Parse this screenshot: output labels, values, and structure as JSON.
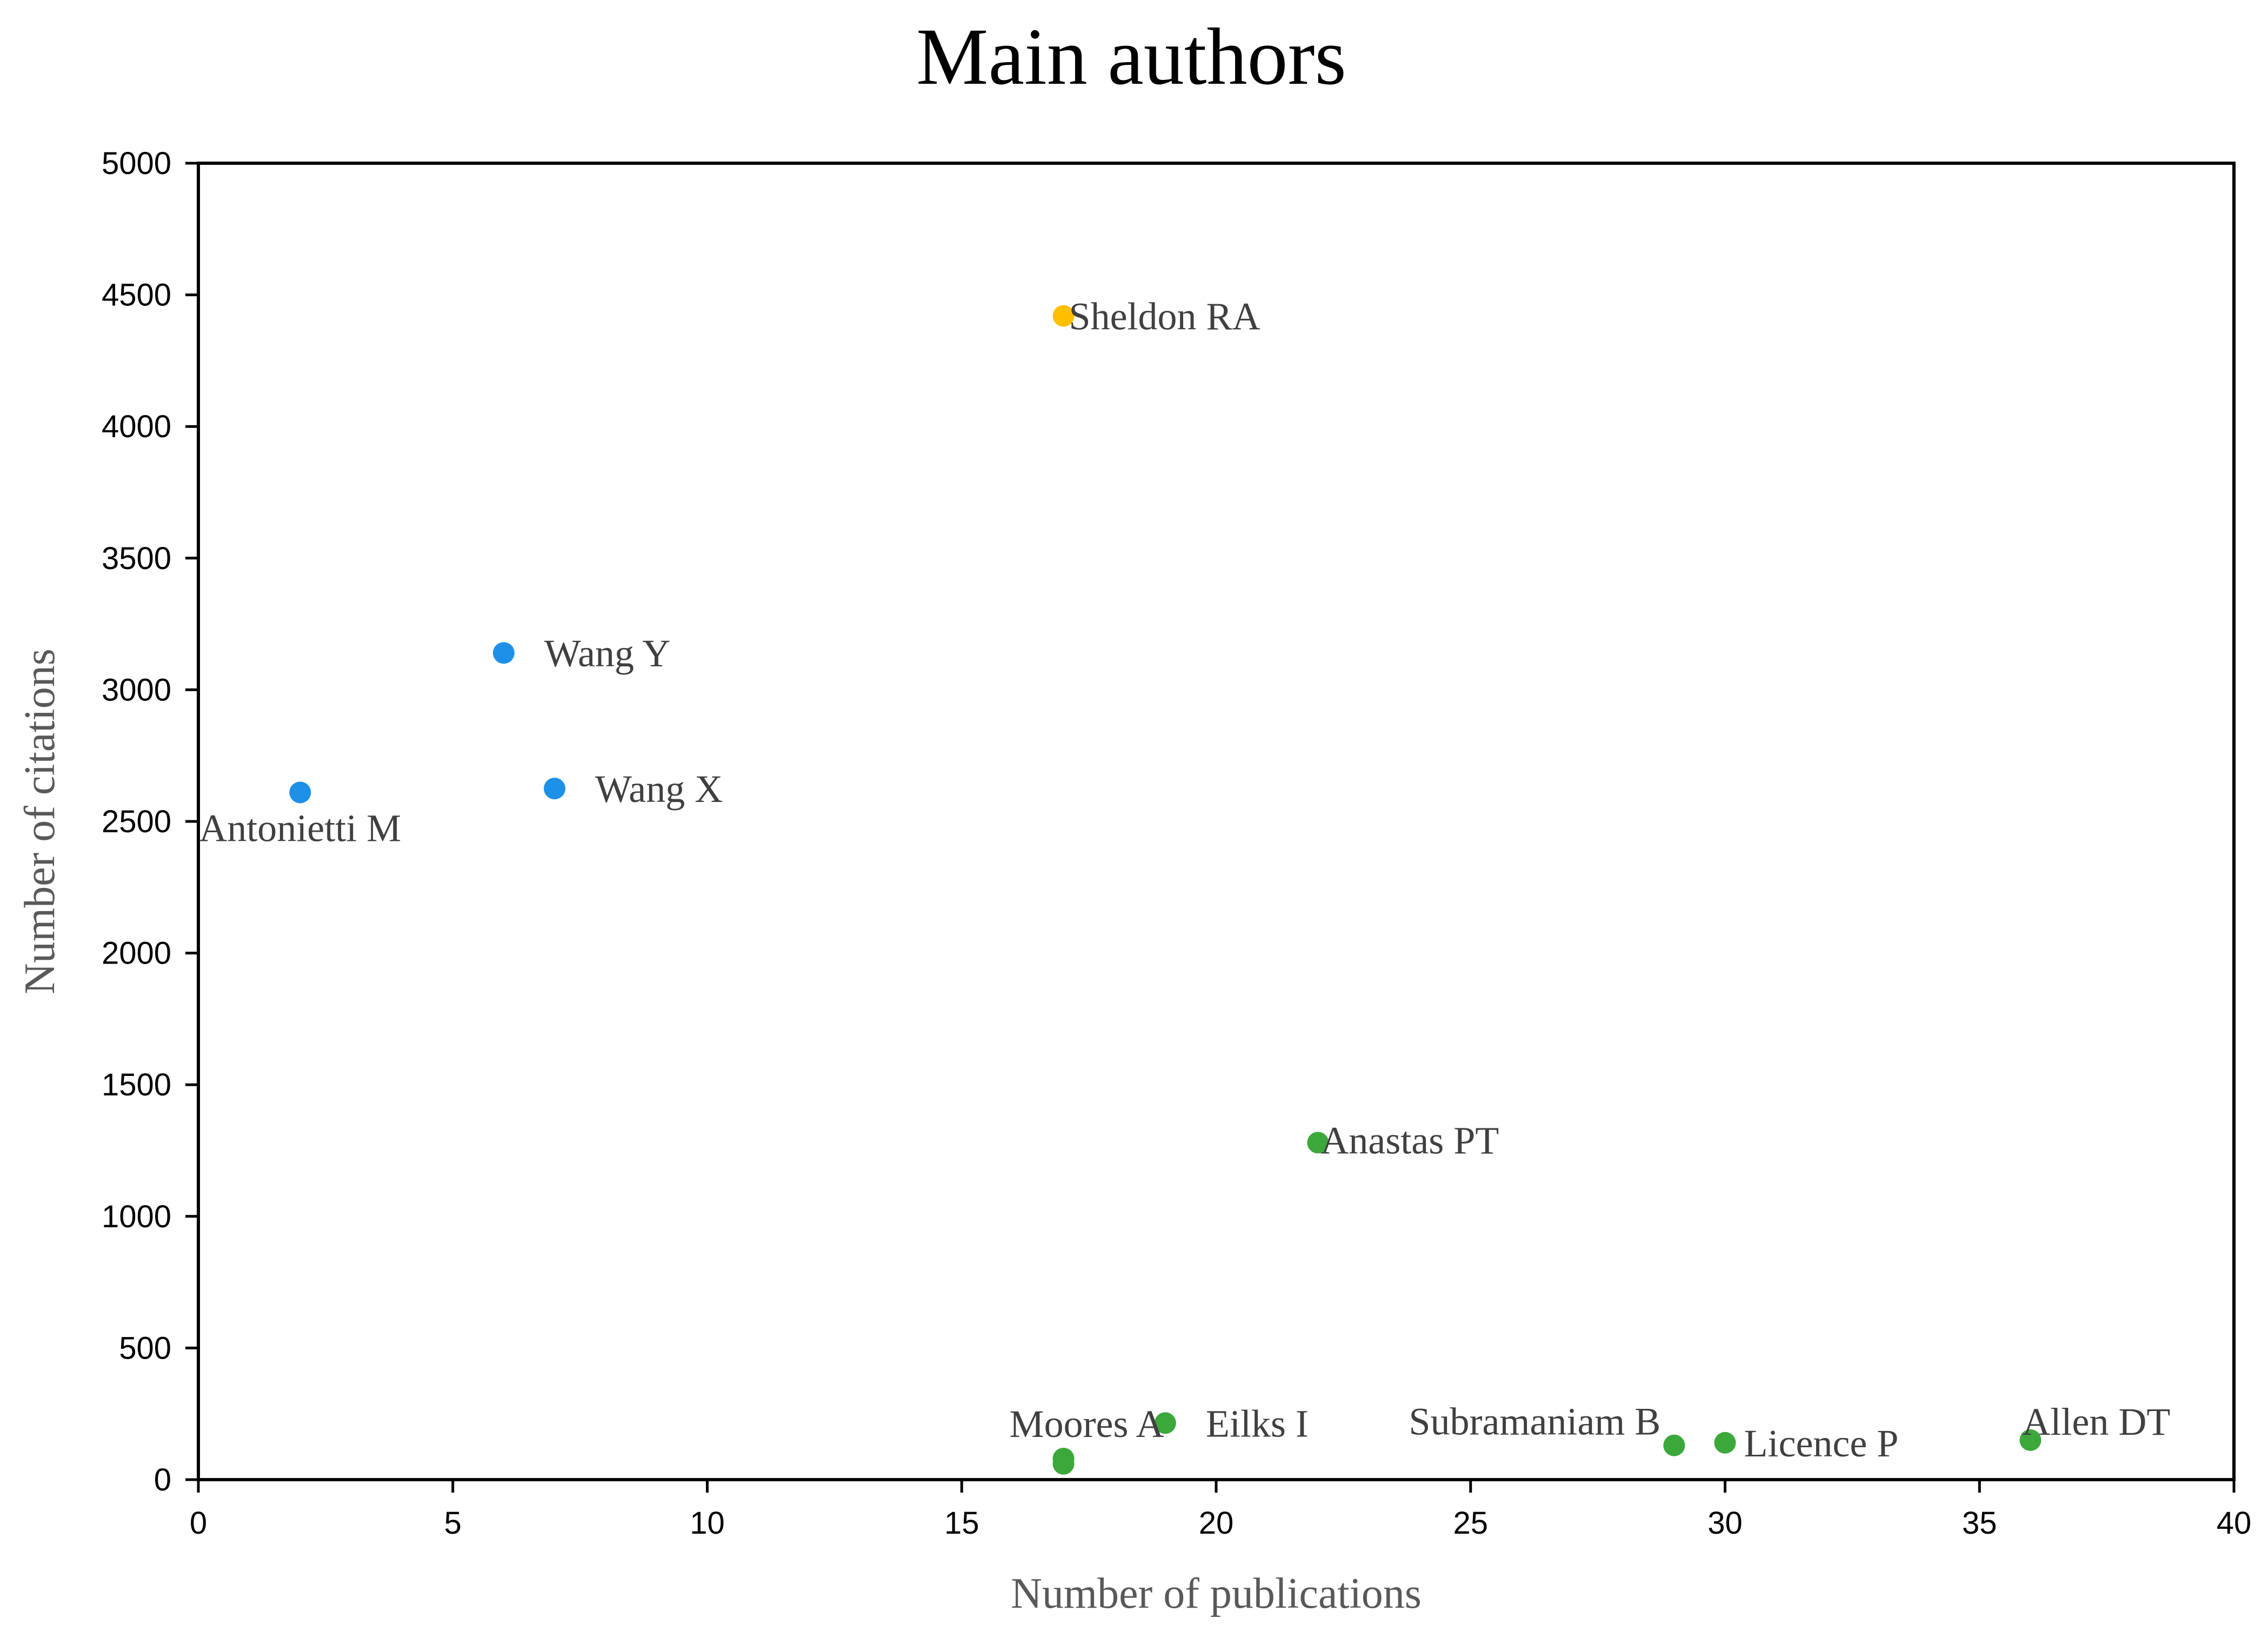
{
  "chart_data": {
    "type": "scatter",
    "title": "Main authors",
    "xlabel": "Number of publications",
    "ylabel": "Number of citations",
    "xlim": [
      0,
      40
    ],
    "ylim": [
      0,
      5000
    ],
    "xticks": [
      "0",
      "5",
      "10",
      "15",
      "20",
      "25",
      "30",
      "35",
      "40"
    ],
    "yticks": [
      "0",
      "500",
      "1000",
      "1500",
      "2000",
      "2500",
      "3000",
      "3500",
      "4000",
      "4500",
      "5000"
    ],
    "grid": false,
    "legend": "none",
    "colors": {
      "blue": "#1e90e8",
      "orange": "#ffc000",
      "green": "#3ca83c"
    },
    "points": [
      {
        "label": "Antonietti  M",
        "x": 2,
        "y": 2610,
        "color": "blue"
      },
      {
        "label": "Wang Y",
        "x": 6,
        "y": 3140,
        "color": "blue"
      },
      {
        "label": "Wang X",
        "x": 7,
        "y": 2625,
        "color": "blue"
      },
      {
        "label": "Sheldon RA",
        "x": 17,
        "y": 4420,
        "color": "orange"
      },
      {
        "label": "Moores A",
        "x": 17,
        "y": 80,
        "color": "green"
      },
      {
        "label": "",
        "x": 17,
        "y": 60,
        "color": "green"
      },
      {
        "label": "Eilks  I",
        "x": 19,
        "y": 215,
        "color": "green"
      },
      {
        "label": "Anastas PT",
        "x": 22,
        "y": 1280,
        "color": "green"
      },
      {
        "label": "Subramaniam  B",
        "x": 29,
        "y": 130,
        "color": "green"
      },
      {
        "label": "Licence  P",
        "x": 30,
        "y": 140,
        "color": "green"
      },
      {
        "label": "Allen  DT",
        "x": 36,
        "y": 150,
        "color": "green"
      }
    ]
  }
}
